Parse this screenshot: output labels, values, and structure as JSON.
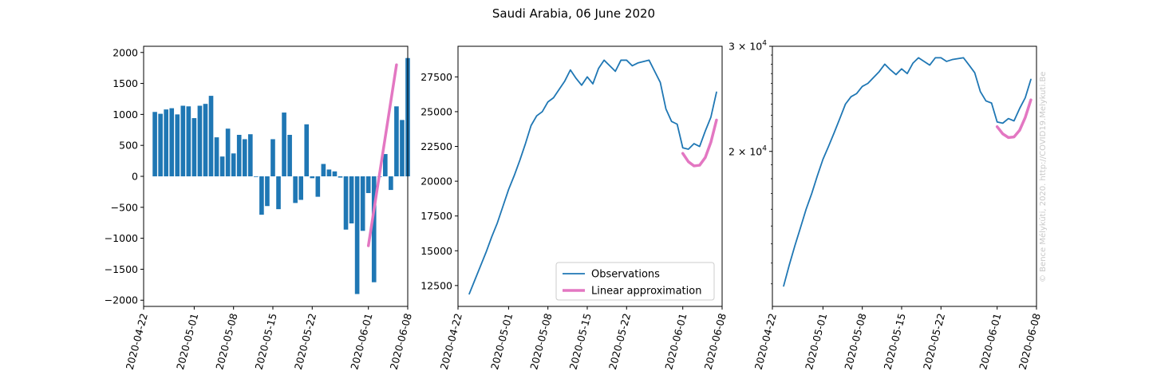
{
  "title": "Saudi Arabia, 06 June 2020",
  "credit": "© Bence Mélykúti, 2020. http://COVID19.Melykuti.Be",
  "colors": {
    "observations": "#1f77b4",
    "approximation": "#e377c2"
  },
  "chart_data": [
    {
      "type": "bar",
      "x_start": "2020-04-24",
      "xlim": [
        "2020-04-22",
        "2020-06-08"
      ],
      "x_ticks": [
        "2020-04-22",
        "2020-05-01",
        "2020-05-08",
        "2020-05-15",
        "2020-05-22",
        "2020-06-01",
        "2020-06-08"
      ],
      "ylim": [
        -2100,
        2100
      ],
      "y_ticks": [
        -2000,
        -1500,
        -1000,
        -500,
        0,
        500,
        1000,
        1500,
        2000
      ],
      "values": [
        1040,
        1010,
        1080,
        1100,
        1000,
        1140,
        1130,
        940,
        1140,
        1170,
        1300,
        630,
        320,
        770,
        370,
        670,
        600,
        680,
        -10,
        -620,
        -480,
        600,
        -530,
        1030,
        670,
        -430,
        -380,
        840,
        -30,
        -330,
        200,
        110,
        80,
        -20,
        -860,
        -760,
        -1900,
        -880,
        -270,
        -1710,
        -10,
        360,
        -220,
        1130,
        910,
        1910
      ],
      "series": [
        {
          "name": "Linear approximation",
          "x": [
            "2020-06-01",
            "2020-06-06"
          ],
          "values": [
            -1120,
            1800
          ]
        }
      ]
    },
    {
      "type": "line",
      "xlim": [
        "2020-04-22",
        "2020-06-08"
      ],
      "x_ticks": [
        "2020-04-22",
        "2020-05-01",
        "2020-05-08",
        "2020-05-15",
        "2020-05-22",
        "2020-06-01",
        "2020-06-08"
      ],
      "ylim": [
        11000,
        29700
      ],
      "y_ticks": [
        12500,
        15000,
        17500,
        20000,
        22500,
        25000,
        27500
      ],
      "legend": {
        "placement": "lower-right",
        "entries": [
          "Observations",
          "Linear approximation"
        ]
      },
      "series": [
        {
          "name": "Observations",
          "x_start": "2020-04-24",
          "values": [
            11900,
            12900,
            13900,
            14900,
            16000,
            17000,
            18200,
            19400,
            20400,
            21500,
            22700,
            24000,
            24700,
            25000,
            25700,
            26000,
            26600,
            27200,
            28000,
            27400,
            26900,
            27500,
            27000,
            28100,
            28700,
            28300,
            27900,
            28700,
            28700,
            28300,
            28500,
            28600,
            28700,
            27900,
            27100,
            25200,
            24300,
            24100,
            22400,
            22300,
            22700,
            22500,
            23600,
            24600,
            26400
          ]
        },
        {
          "name": "Linear approximation",
          "x_start": "2020-06-01",
          "values": [
            22000,
            21400,
            21100,
            21150,
            21700,
            22800,
            24400
          ]
        }
      ]
    },
    {
      "type": "line",
      "log_y": true,
      "xlim": [
        "2020-04-22",
        "2020-06-08"
      ],
      "x_ticks": [
        "2020-04-22",
        "2020-05-01",
        "2020-05-08",
        "2020-05-15",
        "2020-05-22",
        "2020-06-01",
        "2020-06-08"
      ],
      "ylim": [
        11000,
        30000
      ],
      "y_tick_labels": [
        {
          "value": 20000,
          "base": "2 × 10",
          "exp": "4"
        },
        {
          "value": 30000,
          "base": "3 × 10",
          "exp": "4"
        }
      ],
      "series": [
        {
          "name": "Observations",
          "x_start": "2020-04-24",
          "values": [
            11900,
            12900,
            13900,
            14900,
            16000,
            17000,
            18200,
            19400,
            20400,
            21500,
            22700,
            24000,
            24700,
            25000,
            25700,
            26000,
            26600,
            27200,
            28000,
            27400,
            26900,
            27500,
            27000,
            28100,
            28700,
            28300,
            27900,
            28700,
            28700,
            28300,
            28500,
            28600,
            28700,
            27900,
            27100,
            25200,
            24300,
            24100,
            22400,
            22300,
            22700,
            22500,
            23600,
            24600,
            26400
          ]
        },
        {
          "name": "Linear approximation",
          "x_start": "2020-06-01",
          "values": [
            22000,
            21400,
            21100,
            21150,
            21700,
            22800,
            24400
          ]
        }
      ]
    }
  ]
}
